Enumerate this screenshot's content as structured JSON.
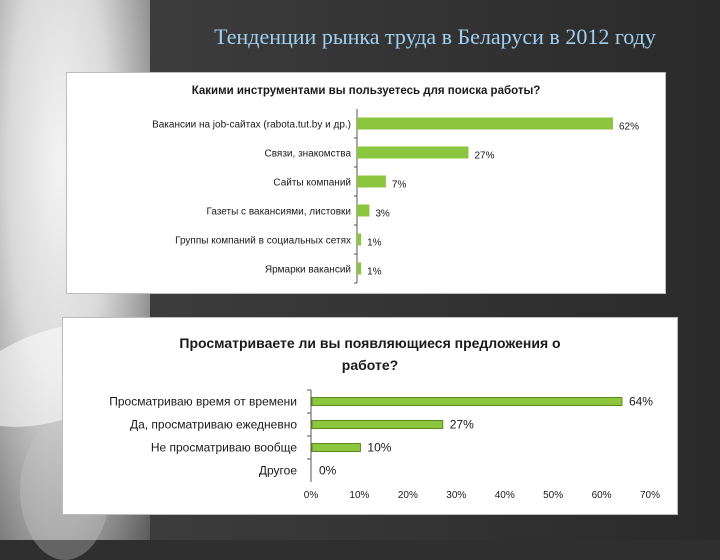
{
  "slide": {
    "title": "Тенденции рынка труда в Беларуси в 2012 году"
  },
  "colors": {
    "bar_green": "#8cc63f",
    "bar_green_dark": "#5a8a1f",
    "title_blue": "#9fd0f0"
  },
  "chart_data": [
    {
      "type": "bar",
      "orientation": "horizontal",
      "title": "Какими инструментами вы пользуетесь для поиска работы?",
      "categories": [
        "Вакансии на job-сайтах (rabota.tut.by и др.)",
        "Связи, знакомства",
        "Сайты компаний",
        "Газеты с вакансиями, листовки",
        "Группы компаний в социальных сетях",
        "Ярмарки вакансий"
      ],
      "values": [
        62,
        27,
        7,
        3,
        1,
        1
      ],
      "value_labels": [
        "62%",
        "27%",
        "7%",
        "3%",
        "1%",
        "1%"
      ],
      "xlim": [
        0,
        62
      ],
      "grid": false
    },
    {
      "type": "bar",
      "orientation": "horizontal",
      "title_line1": "Просматриваете ли вы появляющиеся предложения о",
      "title_line2": "работе?",
      "categories": [
        "Просматриваю время от времени",
        "Да, просматриваю ежедневно",
        "Не просматриваю вообще",
        "Другое"
      ],
      "values": [
        64,
        27,
        10,
        0
      ],
      "value_labels": [
        "64%",
        "27%",
        "10%",
        "0%"
      ],
      "xlim": [
        0,
        70
      ],
      "xticks": [
        "0%",
        "10%",
        "20%",
        "30%",
        "40%",
        "50%",
        "60%",
        "70%"
      ],
      "grid": false
    }
  ]
}
